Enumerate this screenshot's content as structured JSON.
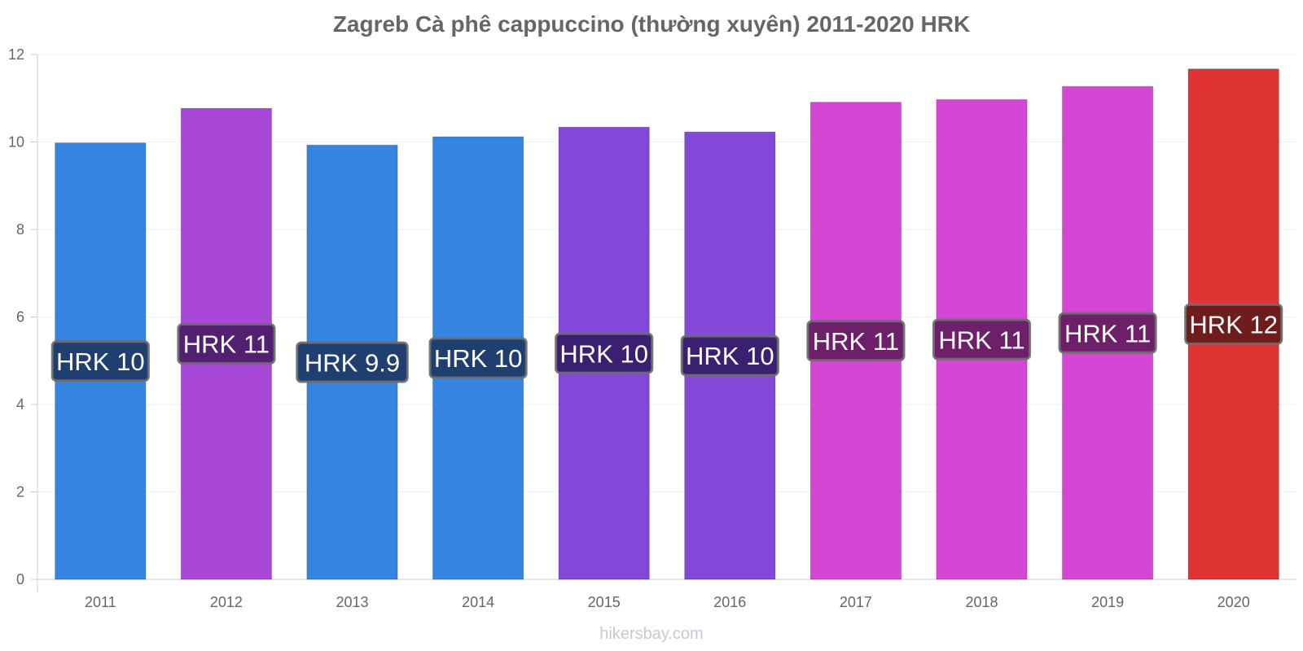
{
  "chart_data": {
    "type": "bar",
    "title": "Zagreb Cà phê cappuccino (thường xuyên) 2011-2020 HRK",
    "xlabel": "",
    "ylabel": "",
    "categories": [
      "2011",
      "2012",
      "2013",
      "2014",
      "2015",
      "2016",
      "2017",
      "2018",
      "2019",
      "2020"
    ],
    "values": [
      9.98,
      10.77,
      9.93,
      10.12,
      10.34,
      10.23,
      10.91,
      10.97,
      11.27,
      11.67
    ],
    "data_labels": [
      "HRK 10",
      "HRK 11",
      "HRK 9.9",
      "HRK 10",
      "HRK 10",
      "HRK 10",
      "HRK 11",
      "HRK 11",
      "HRK 11",
      "HRK 12"
    ],
    "bar_colors": [
      "#3584e0",
      "#a847d8",
      "#3584e0",
      "#3584e0",
      "#8249d8",
      "#8249d8",
      "#d447d4",
      "#d447d4",
      "#d447d4",
      "#e03434"
    ],
    "label_bg_colors": [
      "#1f3f70",
      "#531f70",
      "#1f3f70",
      "#1f3f70",
      "#3b1f70",
      "#3b1f70",
      "#6d1f6a",
      "#6d1f6a",
      "#6d1f6a",
      "#6e1c1c"
    ],
    "ylim": [
      0,
      12
    ],
    "yticks": [
      0,
      2,
      4,
      6,
      8,
      10,
      12
    ],
    "grid": true,
    "legend": "none"
  },
  "watermark": "hikersbay.com"
}
